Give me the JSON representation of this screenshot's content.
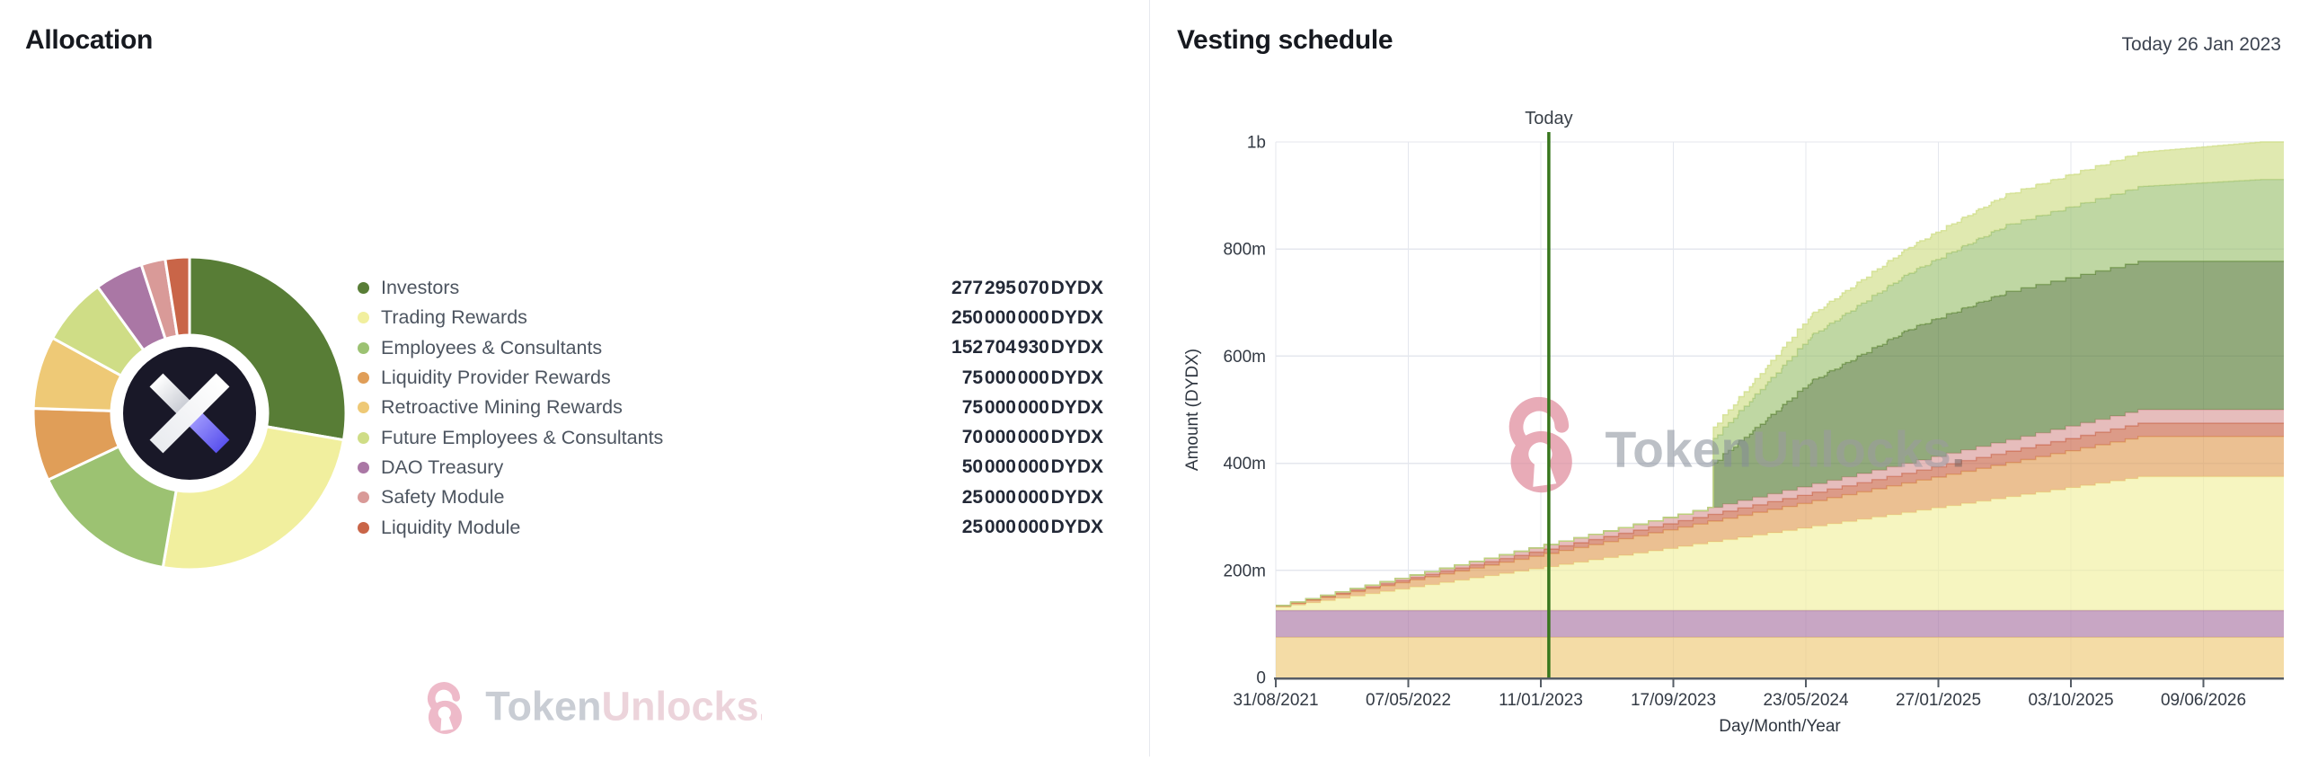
{
  "left_panel": {
    "title": "Allocation"
  },
  "right_panel": {
    "title": "Vesting schedule",
    "today_caption": "Today 26 Jan 2023"
  },
  "watermark": {
    "brand_bold": "Token",
    "brand_light": "Unlocks",
    "brand_period": ".",
    "lock_icon": "open-padlock-icon"
  },
  "logo": {
    "name": "dydx-x-logo",
    "circle_color": "#191828",
    "purple": "#5a52ee",
    "white": "#ffffff",
    "gray": "#b9bdc7"
  },
  "colors": {
    "title_text": "#16191f",
    "caption_text": "#3c4350",
    "axis_text": "#333a44",
    "grid_line": "#e4e7ee",
    "axis_line": "#565d66",
    "today_line": "#37761d",
    "divider": "#e7e9ee",
    "legend_label": "#4d5560",
    "legend_value": "#222836"
  },
  "chart_data": [
    {
      "type": "pie",
      "variant": "donut",
      "title": "Allocation",
      "unit": "DYDX",
      "total": 1000000000,
      "clockwise_from_top": true,
      "slices": [
        {
          "label": "Investors",
          "value": 277295070,
          "display": "277 295 070 DYDX",
          "color": "#587d36"
        },
        {
          "label": "Trading Rewards",
          "value": 250000000,
          "display": "250 000 000 DYDX",
          "color": "#f1ef9e"
        },
        {
          "label": "Employees & Consultants",
          "value": 152704930,
          "display": "152 704 930 DYDX",
          "color": "#9cc272"
        },
        {
          "label": "Liquidity Provider Rewards",
          "value": 75000000,
          "display": "75 000 000 DYDX",
          "color": "#e09e58"
        },
        {
          "label": "Retroactive Mining Rewards",
          "value": 75000000,
          "display": "75 000 000 DYDX",
          "color": "#eec976"
        },
        {
          "label": "Future Employees & Consultants",
          "value": 70000000,
          "display": "70 000 000 DYDX",
          "color": "#cfdd86"
        },
        {
          "label": "DAO Treasury",
          "value": 50000000,
          "display": "50 000 000 DYDX",
          "color": "#aa77a5"
        },
        {
          "label": "Safety Module",
          "value": 25000000,
          "display": "25 000 000 DYDX",
          "color": "#d99a98"
        },
        {
          "label": "Liquidity Module",
          "value": 25000000,
          "display": "25 000 000 DYDX",
          "color": "#c96548"
        }
      ]
    },
    {
      "type": "area",
      "variant": "stacked-step",
      "title": "Vesting schedule",
      "x_axis": {
        "title": "Day/Month/Year",
        "domain_days": [
          0,
          1894
        ],
        "ticks": [
          {
            "label": "31/08/2021",
            "day": 0
          },
          {
            "label": "07/05/2022",
            "day": 249
          },
          {
            "label": "11/01/2023",
            "day": 498
          },
          {
            "label": "17/09/2023",
            "day": 747
          },
          {
            "label": "23/05/2024",
            "day": 996
          },
          {
            "label": "27/01/2025",
            "day": 1245
          },
          {
            "label": "03/10/2025",
            "day": 1494
          },
          {
            "label": "09/06/2026",
            "day": 1743
          }
        ]
      },
      "y_axis": {
        "title": "Amount (DYDX)",
        "unit": "millions DYDX",
        "range_millions": [
          0,
          1000
        ],
        "ticks": [
          {
            "label": "0",
            "value": 0
          },
          {
            "label": "200m",
            "value": 200
          },
          {
            "label": "400m",
            "value": 400
          },
          {
            "label": "600m",
            "value": 600
          },
          {
            "label": "800m",
            "value": 800
          },
          {
            "label": "1b",
            "value": 1000
          }
        ]
      },
      "today_marker": {
        "label": "Today",
        "date": "26 Jan 2023",
        "day": 513
      },
      "grid": true,
      "fill_opacity": 0.65,
      "series": [
        {
          "name": "Retroactive Mining Rewards",
          "color": "#eec976",
          "step_days": 28,
          "points": [
            [
              0,
              75
            ],
            [
              1894,
              75
            ]
          ]
        },
        {
          "name": "DAO Treasury",
          "color": "#aa77a5",
          "step_days": 28,
          "points": [
            [
              0,
              50
            ],
            [
              1894,
              50
            ]
          ]
        },
        {
          "name": "Trading Rewards",
          "color": "#f1ef9e",
          "step_days": 28,
          "points": [
            [
              0,
              6
            ],
            [
              1620,
              250
            ],
            [
              1894,
              250
            ]
          ]
        },
        {
          "name": "Liquidity Provider Rewards",
          "color": "#e09e58",
          "step_days": 28,
          "points": [
            [
              0,
              2
            ],
            [
              1620,
              75
            ],
            [
              1894,
              75
            ]
          ]
        },
        {
          "name": "Liquidity Module",
          "color": "#c96548",
          "step_days": 28,
          "points": [
            [
              0,
              0.7
            ],
            [
              1620,
              25
            ],
            [
              1894,
              25
            ]
          ]
        },
        {
          "name": "Safety Module",
          "color": "#d99a98",
          "step_days": 28,
          "points": [
            [
              0,
              0.7
            ],
            [
              1620,
              25
            ],
            [
              1894,
              25
            ]
          ]
        },
        {
          "name": "Investors",
          "color": "#587d36",
          "step_days": 10,
          "points": [
            [
              0,
              0
            ],
            [
              821,
              0
            ],
            [
              822,
              83.2
            ],
            [
              1005,
              194.1
            ],
            [
              1188,
              249.6
            ],
            [
              1370,
              277.3
            ],
            [
              1894,
              277.3
            ]
          ]
        },
        {
          "name": "Employees & Consultants",
          "color": "#9cc272",
          "step_days": 10,
          "points": [
            [
              0,
              0
            ],
            [
              821,
              0
            ],
            [
              822,
              45.8
            ],
            [
              1005,
              85
            ],
            [
              1370,
              125
            ],
            [
              1850,
              152.7
            ],
            [
              1894,
              152.7
            ]
          ]
        },
        {
          "name": "Future Employees & Consultants",
          "color": "#cfdd86",
          "step_days": 10,
          "points": [
            [
              0,
              0
            ],
            [
              821,
              0
            ],
            [
              822,
              21
            ],
            [
              1005,
              39
            ],
            [
              1370,
              57
            ],
            [
              1850,
              70
            ],
            [
              1894,
              70
            ]
          ]
        }
      ]
    }
  ]
}
